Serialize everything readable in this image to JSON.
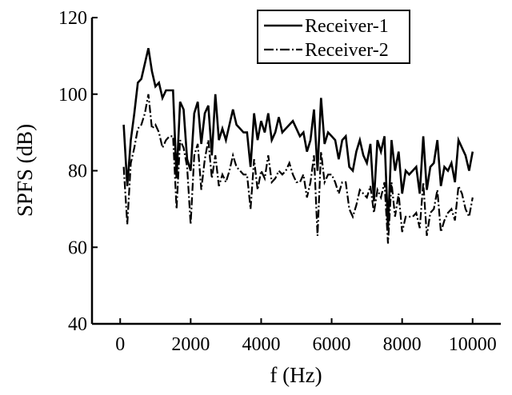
{
  "chart_data": {
    "type": "line",
    "title": "",
    "xlabel": "f (Hz)",
    "ylabel": "SPFS (dB)",
    "xlim": [
      -800,
      10800
    ],
    "ylim": [
      40,
      120
    ],
    "xticks": [
      0,
      2000,
      4000,
      6000,
      8000,
      10000
    ],
    "xtick_labels": [
      "0",
      "2000",
      "4000",
      "6000",
      "8000",
      "10000"
    ],
    "yticks": [
      40,
      60,
      80,
      100,
      120
    ],
    "ytick_labels": [
      "40",
      "60",
      "80",
      "100",
      "120"
    ],
    "grid": false,
    "legend_position": "top-right",
    "series": [
      {
        "name": "Receiver-1",
        "line_style": "solid",
        "x": [
          100,
          200,
          300,
          400,
          500,
          600,
          700,
          800,
          900,
          1000,
          1100,
          1200,
          1300,
          1400,
          1500,
          1600,
          1700,
          1800,
          1900,
          2000,
          2100,
          2200,
          2300,
          2400,
          2500,
          2600,
          2700,
          2800,
          2900,
          3000,
          3100,
          3200,
          3300,
          3400,
          3500,
          3600,
          3700,
          3800,
          3900,
          4000,
          4100,
          4200,
          4300,
          4400,
          4500,
          4600,
          4700,
          4800,
          4900,
          5000,
          5100,
          5200,
          5300,
          5400,
          5500,
          5600,
          5700,
          5800,
          5900,
          6000,
          6100,
          6200,
          6300,
          6400,
          6500,
          6600,
          6700,
          6800,
          6900,
          7000,
          7100,
          7200,
          7300,
          7400,
          7500,
          7600,
          7700,
          7800,
          7900,
          8000,
          8100,
          8200,
          8300,
          8400,
          8500,
          8600,
          8700,
          8800,
          8900,
          9000,
          9100,
          9200,
          9300,
          9400,
          9500,
          9600,
          9700,
          9800,
          9900,
          10000
        ],
        "y": [
          92,
          76,
          88,
          95,
          103,
          104,
          108,
          112,
          106,
          102,
          103,
          99,
          101,
          101,
          101,
          78,
          98,
          96,
          83,
          80,
          95,
          98,
          87,
          95,
          97,
          84,
          100,
          88,
          91,
          88,
          92,
          96,
          92,
          91,
          90,
          90,
          81,
          95,
          88,
          93,
          90,
          95,
          88,
          90,
          94,
          90,
          91,
          92,
          93,
          91,
          89,
          90,
          85,
          88,
          96,
          80,
          99,
          87,
          90,
          89,
          88,
          83,
          88,
          89,
          81,
          80,
          85,
          88,
          84,
          82,
          87,
          72,
          88,
          85,
          89,
          65,
          88,
          80,
          85,
          74,
          80,
          79,
          80,
          81,
          74,
          89,
          75,
          81,
          82,
          88,
          76,
          81,
          80,
          82,
          77,
          88,
          86,
          84,
          80,
          85
        ]
      },
      {
        "name": "Receiver-2",
        "line_style": "dash-dot",
        "x": [
          100,
          200,
          300,
          400,
          500,
          600,
          700,
          800,
          900,
          1000,
          1100,
          1200,
          1300,
          1400,
          1500,
          1600,
          1700,
          1800,
          1900,
          2000,
          2100,
          2200,
          2300,
          2400,
          2500,
          2600,
          2700,
          2800,
          2900,
          3000,
          3100,
          3200,
          3300,
          3400,
          3500,
          3600,
          3700,
          3800,
          3900,
          4000,
          4100,
          4200,
          4300,
          4400,
          4500,
          4600,
          4700,
          4800,
          4900,
          5000,
          5100,
          5200,
          5300,
          5400,
          5500,
          5600,
          5700,
          5800,
          5900,
          6000,
          6100,
          6200,
          6300,
          6400,
          6500,
          6600,
          6700,
          6800,
          6900,
          7000,
          7100,
          7200,
          7300,
          7400,
          7500,
          7600,
          7700,
          7800,
          7900,
          8000,
          8100,
          8200,
          8300,
          8400,
          8500,
          8600,
          8700,
          8800,
          8900,
          9000,
          9100,
          9200,
          9300,
          9400,
          9500,
          9600,
          9700,
          9800,
          9900,
          10000
        ],
        "y": [
          81,
          66,
          82,
          86,
          91,
          92,
          95,
          100,
          91,
          92,
          90,
          86,
          88,
          89,
          89,
          70,
          88,
          86,
          81,
          66,
          84,
          87,
          75,
          83,
          88,
          78,
          84,
          76,
          79,
          77,
          80,
          84,
          81,
          80,
          79,
          79,
          70,
          83,
          75,
          80,
          78,
          84,
          77,
          78,
          80,
          79,
          80,
          82,
          79,
          77,
          77,
          79,
          73,
          77,
          84,
          63,
          85,
          77,
          79,
          79,
          77,
          74,
          77,
          77,
          70,
          68,
          71,
          75,
          74,
          73,
          76,
          69,
          75,
          73,
          77,
          61,
          77,
          68,
          74,
          64,
          68,
          68,
          68,
          69,
          65,
          77,
          63,
          69,
          70,
          75,
          64,
          67,
          69,
          70,
          67,
          76,
          74,
          70,
          68,
          73
        ]
      }
    ]
  }
}
